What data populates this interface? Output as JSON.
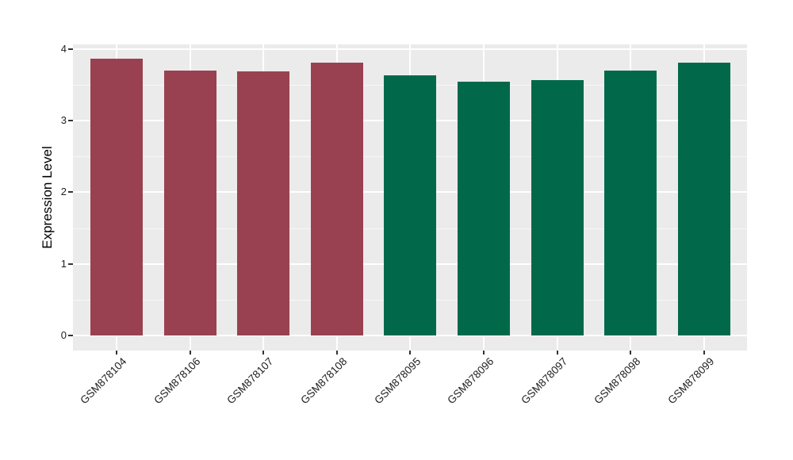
{
  "chart_data": {
    "type": "bar",
    "title": "",
    "xlabel": "",
    "ylabel": "Expression Level",
    "categories": [
      "GSM878104",
      "GSM878106",
      "GSM878107",
      "GSM878108",
      "GSM878095",
      "GSM878096",
      "GSM878097",
      "GSM878098",
      "GSM878099"
    ],
    "values": [
      3.86,
      3.7,
      3.69,
      3.81,
      3.63,
      3.54,
      3.57,
      3.7,
      3.81
    ],
    "bar_colors": [
      "#994150",
      "#994150",
      "#994150",
      "#994150",
      "#01694A",
      "#01694A",
      "#01694A",
      "#01694A",
      "#01694A"
    ],
    "group_colors": {
      "group1": "#994150",
      "group2": "#01694A"
    },
    "yticks": [
      0,
      1,
      2,
      3,
      4
    ],
    "ylim": [
      -0.2,
      4.08
    ],
    "grid": "on",
    "legend_position": "none",
    "panel_bg": "#EBEBEB",
    "grid_color": "#FFFFFF",
    "tick_color": "#333333",
    "text_color": "#1F1F1F",
    "xtick_rotation_deg": 45
  }
}
